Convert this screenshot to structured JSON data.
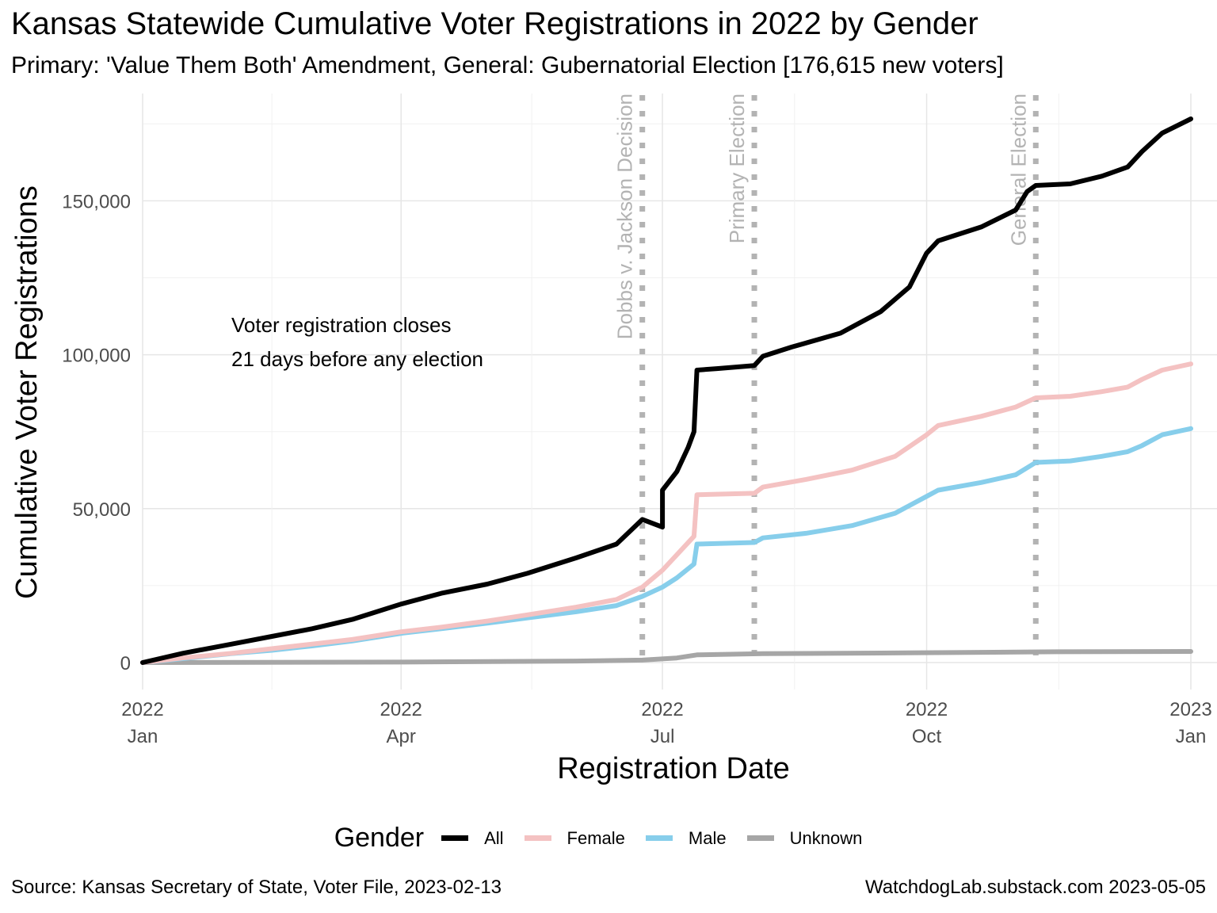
{
  "title": "Kansas Statewide Cumulative Voter Registrations in 2022 by Gender",
  "subtitle": "Primary: 'Value Them Both' Amendment, General: Gubernatorial Election [176,615 new voters]",
  "caption_left": "Source:  Kansas Secretary of State, Voter File, 2023-02-13",
  "caption_right": "WatchdogLab.substack.com 2023-05-05",
  "chart_data": {
    "type": "line",
    "xlabel": "Registration Date",
    "ylabel": "Cumulative Voter Registrations",
    "xlim": [
      "2022-01-01",
      "2023-01-01"
    ],
    "ylim": [
      0,
      176615
    ],
    "y_ticks": [
      {
        "value": 0,
        "label": "0"
      },
      {
        "value": 50000,
        "label": "50,000"
      },
      {
        "value": 100000,
        "label": "100,000"
      },
      {
        "value": 150000,
        "label": "150,000"
      }
    ],
    "x_ticks": [
      {
        "date": "2022-01-01",
        "year": "2022",
        "month": "Jan"
      },
      {
        "date": "2022-04-01",
        "year": "2022",
        "month": "Apr"
      },
      {
        "date": "2022-07-01",
        "year": "2022",
        "month": "Jul"
      },
      {
        "date": "2022-10-01",
        "year": "2022",
        "month": "Oct"
      },
      {
        "date": "2023-01-01",
        "year": "2023",
        "month": "Jan"
      }
    ],
    "grid": true,
    "legend_title": "Gender",
    "legend_position": "bottom",
    "series": [
      {
        "name": "All",
        "color": "#000000",
        "points": [
          [
            "2022-01-01",
            0
          ],
          [
            "2022-01-15",
            3000
          ],
          [
            "2022-02-01",
            6000
          ],
          [
            "2022-02-15",
            8500
          ],
          [
            "2022-03-01",
            11000
          ],
          [
            "2022-03-15",
            14000
          ],
          [
            "2022-04-01",
            19000
          ],
          [
            "2022-04-15",
            22500
          ],
          [
            "2022-05-01",
            25500
          ],
          [
            "2022-05-15",
            29000
          ],
          [
            "2022-06-01",
            34000
          ],
          [
            "2022-06-15",
            38500
          ],
          [
            "2022-07-01",
            44000
          ],
          [
            "2022-06-24",
            46500
          ],
          [
            "2022-07-01",
            56000
          ],
          [
            "2022-07-06",
            62000
          ],
          [
            "2022-07-10",
            70000
          ],
          [
            "2022-07-12",
            75000
          ],
          [
            "2022-07-13",
            95000
          ],
          [
            "2022-07-20",
            95500
          ],
          [
            "2022-08-02",
            96500
          ],
          [
            "2022-08-05",
            99500
          ],
          [
            "2022-08-15",
            102500
          ],
          [
            "2022-09-01",
            107000
          ],
          [
            "2022-09-15",
            114000
          ],
          [
            "2022-09-25",
            122000
          ],
          [
            "2022-10-01",
            133000
          ],
          [
            "2022-10-05",
            137000
          ],
          [
            "2022-10-20",
            141500
          ],
          [
            "2022-11-01",
            147000
          ],
          [
            "2022-11-05",
            153000
          ],
          [
            "2022-11-08",
            155000
          ],
          [
            "2022-11-20",
            155500
          ],
          [
            "2022-12-01",
            158000
          ],
          [
            "2022-12-10",
            161000
          ],
          [
            "2022-12-15",
            166000
          ],
          [
            "2022-12-22",
            172000
          ],
          [
            "2023-01-01",
            176615
          ]
        ]
      },
      {
        "name": "Female",
        "color": "#f4c2c2",
        "points": [
          [
            "2022-01-01",
            0
          ],
          [
            "2022-01-15",
            1500
          ],
          [
            "2022-02-01",
            3000
          ],
          [
            "2022-02-15",
            4500
          ],
          [
            "2022-03-01",
            6000
          ],
          [
            "2022-03-15",
            7500
          ],
          [
            "2022-04-01",
            10000
          ],
          [
            "2022-04-15",
            11500
          ],
          [
            "2022-05-01",
            13500
          ],
          [
            "2022-05-15",
            15500
          ],
          [
            "2022-06-01",
            18000
          ],
          [
            "2022-06-15",
            20500
          ],
          [
            "2022-06-24",
            24500
          ],
          [
            "2022-07-01",
            30000
          ],
          [
            "2022-07-06",
            35000
          ],
          [
            "2022-07-12",
            41000
          ],
          [
            "2022-07-13",
            54500
          ],
          [
            "2022-08-02",
            55000
          ],
          [
            "2022-08-05",
            57000
          ],
          [
            "2022-08-20",
            59500
          ],
          [
            "2022-09-05",
            62500
          ],
          [
            "2022-09-20",
            67000
          ],
          [
            "2022-10-01",
            74000
          ],
          [
            "2022-10-05",
            77000
          ],
          [
            "2022-10-20",
            80000
          ],
          [
            "2022-11-01",
            83000
          ],
          [
            "2022-11-08",
            86000
          ],
          [
            "2022-11-20",
            86500
          ],
          [
            "2022-12-01",
            88000
          ],
          [
            "2022-12-10",
            89500
          ],
          [
            "2022-12-15",
            92000
          ],
          [
            "2022-12-22",
            95000
          ],
          [
            "2023-01-01",
            97000
          ]
        ]
      },
      {
        "name": "Male",
        "color": "#87ceeb",
        "points": [
          [
            "2022-01-01",
            0
          ],
          [
            "2022-01-15",
            1300
          ],
          [
            "2022-02-01",
            2900
          ],
          [
            "2022-02-15",
            4000
          ],
          [
            "2022-03-01",
            5400
          ],
          [
            "2022-03-15",
            7000
          ],
          [
            "2022-04-01",
            9500
          ],
          [
            "2022-04-15",
            11000
          ],
          [
            "2022-05-01",
            12800
          ],
          [
            "2022-05-15",
            14500
          ],
          [
            "2022-06-01",
            16500
          ],
          [
            "2022-06-15",
            18500
          ],
          [
            "2022-06-24",
            21500
          ],
          [
            "2022-07-01",
            24500
          ],
          [
            "2022-07-06",
            27500
          ],
          [
            "2022-07-12",
            32000
          ],
          [
            "2022-07-13",
            38500
          ],
          [
            "2022-08-02",
            39000
          ],
          [
            "2022-08-05",
            40500
          ],
          [
            "2022-08-20",
            42000
          ],
          [
            "2022-09-05",
            44500
          ],
          [
            "2022-09-20",
            48500
          ],
          [
            "2022-10-01",
            54000
          ],
          [
            "2022-10-05",
            56000
          ],
          [
            "2022-10-20",
            58500
          ],
          [
            "2022-11-01",
            61000
          ],
          [
            "2022-11-08",
            65000
          ],
          [
            "2022-11-20",
            65500
          ],
          [
            "2022-12-01",
            67000
          ],
          [
            "2022-12-10",
            68500
          ],
          [
            "2022-12-15",
            70500
          ],
          [
            "2022-12-22",
            74000
          ],
          [
            "2023-01-01",
            76000
          ]
        ]
      },
      {
        "name": "Unknown",
        "color": "#a6a6a6",
        "points": [
          [
            "2022-01-01",
            0
          ],
          [
            "2022-04-01",
            150
          ],
          [
            "2022-06-01",
            500
          ],
          [
            "2022-06-24",
            800
          ],
          [
            "2022-07-06",
            1500
          ],
          [
            "2022-07-13",
            2500
          ],
          [
            "2022-08-05",
            2900
          ],
          [
            "2022-09-15",
            3100
          ],
          [
            "2022-10-15",
            3300
          ],
          [
            "2022-11-15",
            3500
          ],
          [
            "2023-01-01",
            3600
          ]
        ]
      }
    ],
    "event_lines": [
      {
        "date": "2022-06-24",
        "label": "Dobbs v. Jackson Decision"
      },
      {
        "date": "2022-08-02",
        "label": "Primary Election"
      },
      {
        "date": "2022-11-08",
        "label": "General Election"
      }
    ],
    "annotation": [
      "Voter registration closes",
      "21 days before any election"
    ]
  }
}
